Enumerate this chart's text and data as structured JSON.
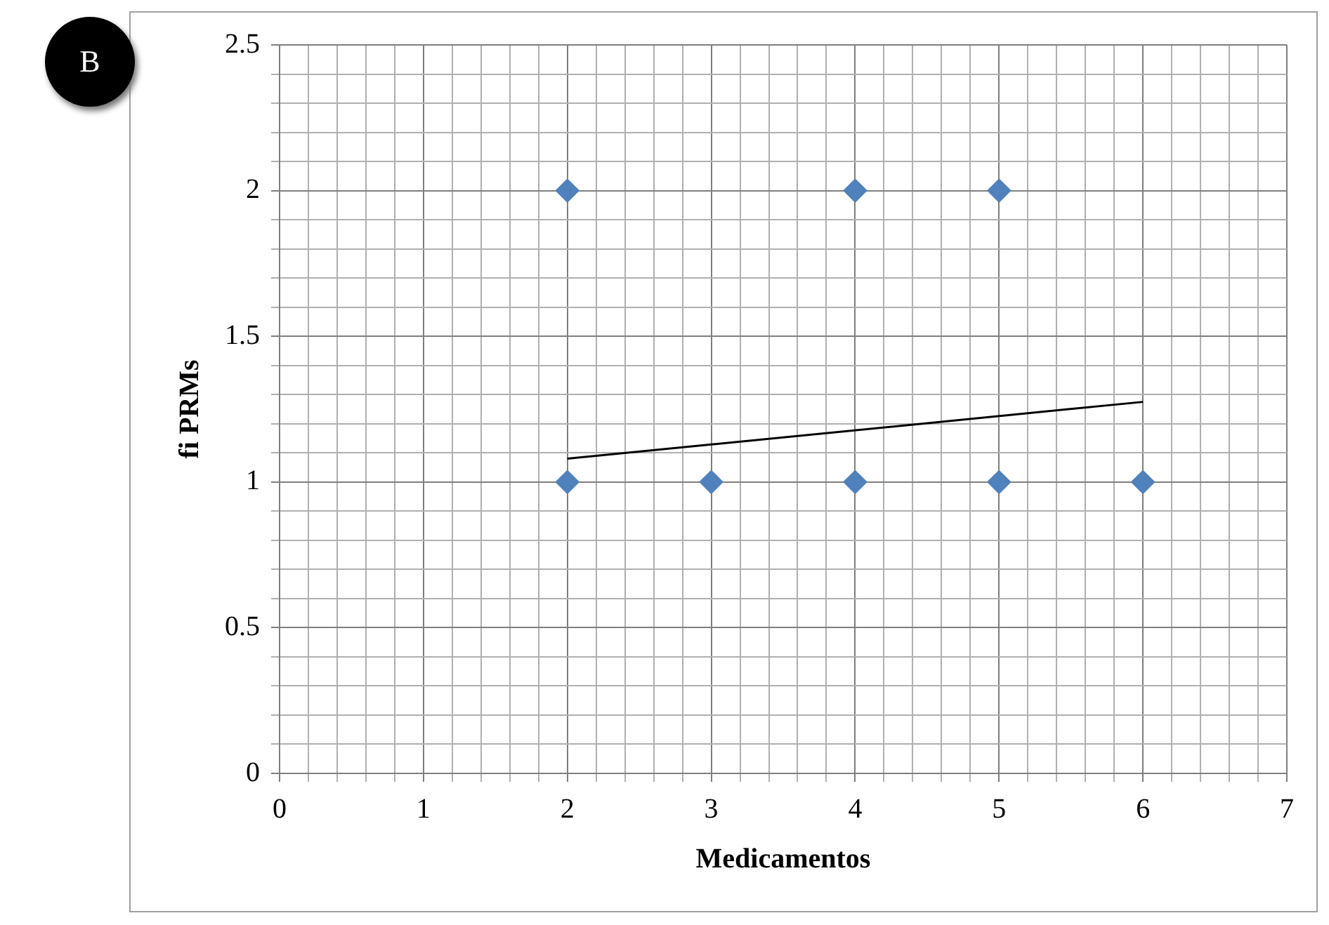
{
  "chart_data": {
    "type": "scatter",
    "xlabel": "Medicamentos",
    "ylabel": "fi PRMs",
    "annotations": [
      "B"
    ],
    "marker": "diamond",
    "grid": true,
    "legend": false,
    "xlim": [
      0,
      7
    ],
    "ylim": [
      0,
      2.5
    ],
    "xticks": [
      0,
      {
        "value": 0.2,
        "label": null
      },
      {
        "value": 0.4,
        "label": null
      },
      {
        "value": 0.6,
        "label": null
      },
      {
        "value": 0.8,
        "label": null
      },
      1,
      {
        "value": 1.2,
        "label": null
      },
      {
        "value": 1.4,
        "label": null
      },
      {
        "value": 1.6,
        "label": null
      },
      {
        "value": 1.8,
        "label": null
      },
      2,
      {
        "value": 2.2,
        "label": null
      },
      {
        "value": 2.4,
        "label": null
      },
      {
        "value": 2.6,
        "label": null
      },
      {
        "value": 2.8,
        "label": null
      },
      3,
      {
        "value": 3.2,
        "label": null
      },
      {
        "value": 3.4,
        "label": null
      },
      {
        "value": 3.6,
        "label": null
      },
      {
        "value": 3.8,
        "label": null
      },
      4,
      {
        "value": 4.2,
        "label": null
      },
      {
        "value": 4.4,
        "label": null
      },
      {
        "value": 4.6,
        "label": null
      },
      {
        "value": 4.8,
        "label": null
      },
      5,
      {
        "value": 5.2,
        "label": null
      },
      {
        "value": 5.4,
        "label": null
      },
      {
        "value": 5.6,
        "label": null
      },
      {
        "value": 5.8,
        "label": null
      },
      6,
      {
        "value": 6.2,
        "label": null
      },
      {
        "value": 6.4,
        "label": null
      },
      {
        "value": 6.6,
        "label": null
      },
      {
        "value": 6.8,
        "label": null
      },
      7
    ],
    "yticks": [
      0,
      {
        "value": 0.1,
        "label": null
      },
      {
        "value": 0.2,
        "label": null
      },
      {
        "value": 0.3,
        "label": null
      },
      {
        "value": 0.4,
        "label": null
      },
      0.5,
      {
        "value": 0.6,
        "label": null
      },
      {
        "value": 0.7,
        "label": null
      },
      {
        "value": 0.8,
        "label": null
      },
      {
        "value": 0.9,
        "label": null
      },
      1,
      {
        "value": 1.1,
        "label": null
      },
      {
        "value": 1.2,
        "label": null
      },
      {
        "value": 1.3,
        "label": null
      },
      {
        "value": 1.4,
        "label": null
      },
      1.5,
      {
        "value": 1.6,
        "label": null
      },
      {
        "value": 1.7,
        "label": null
      },
      {
        "value": 1.8,
        "label": null
      },
      {
        "value": 1.9,
        "label": null
      },
      2,
      {
        "value": 2.1,
        "label": null
      },
      {
        "value": 2.2,
        "label": null
      },
      {
        "value": 2.3,
        "label": null
      },
      {
        "value": 2.4,
        "label": null
      },
      2.5
    ],
    "series": [
      {
        "color": "#4f81bd",
        "x": [
          2,
          4,
          5,
          2,
          3,
          4,
          5,
          6
        ],
        "values": [
          2,
          2,
          2,
          1,
          1,
          1,
          1,
          1
        ]
      },
      {
        "type": "line",
        "color": "#000000",
        "x": [
          2,
          6
        ],
        "values": [
          1.08,
          1.275
        ],
        "marker": "none"
      }
    ]
  }
}
